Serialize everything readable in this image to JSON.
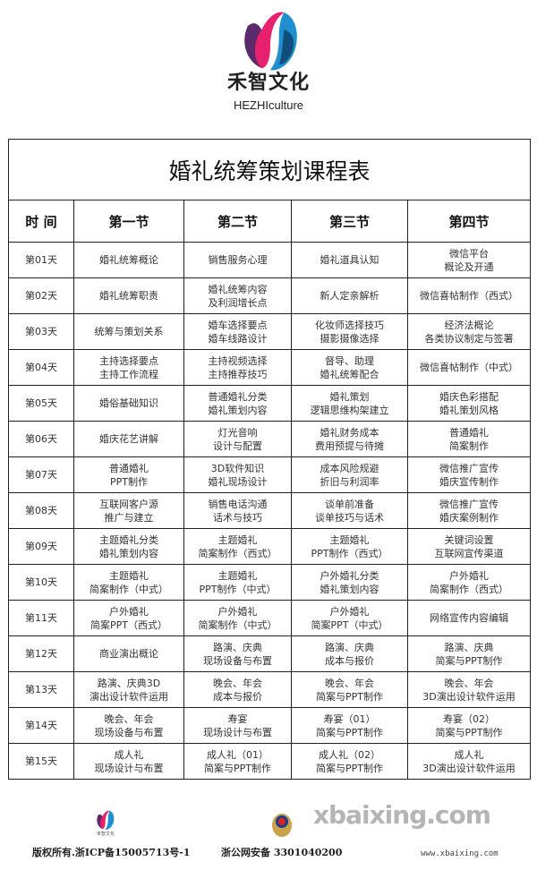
{
  "brand": {
    "name_cn": "禾智文化",
    "name_en": "HEZHIculture",
    "colors": {
      "pink": "#e8216f",
      "blue": "#1f8fd0",
      "purple": "#5a2a6a"
    }
  },
  "table": {
    "title": "婚礼统筹策划课程表",
    "headers": [
      "时 间",
      "第一节",
      "第二节",
      "第三节",
      "第四节"
    ],
    "rows": [
      [
        "第01天",
        "婚礼统筹概论",
        "销售服务心理",
        "婚礼道具认知",
        "微信平台\n概论及开通"
      ],
      [
        "第02天",
        "婚礼统筹职责",
        "婚礼统筹内容\n及利润增长点",
        "新人定亲解析",
        "微信喜帖制作（西式）"
      ],
      [
        "第03天",
        "统筹与策划关系",
        "婚车选择要点\n婚车线路设计",
        "化妆师选择技巧\n摄影摄像选择",
        "经济法概论\n各类协议制定与签署"
      ],
      [
        "第04天",
        "主持选择要点\n主持工作流程",
        "主持视频选择\n主持推荐技巧",
        "督导、助理\n婚礼统筹配合",
        "微信喜帖制作（中式）"
      ],
      [
        "第05天",
        "婚俗基础知识",
        "普通婚礼分类\n婚礼策划内容",
        "婚礼策划\n逻辑思维构架建立",
        "婚庆色彩搭配\n婚礼策划风格"
      ],
      [
        "第06天",
        "婚庆花艺讲解",
        "灯光音响\n设计与配置",
        "婚礼财务成本\n费用预提与待摊",
        "普通婚礼\n简案制作"
      ],
      [
        "第07天",
        "普通婚礼\nPPT制作",
        "3D软件知识\n婚礼现场设计",
        "成本风险规避\n折旧与利润率",
        "微信推广宣传\n婚庆宣传制作"
      ],
      [
        "第08天",
        "互联网客户源\n推广与建立",
        "销售电话沟通\n话术与技巧",
        "谈单前准备\n谈单技巧与话术",
        "微信推广宣传\n婚庆案例制作"
      ],
      [
        "第09天",
        "主题婚礼分类\n婚礼策划内容",
        "主题婚礼\n简案制作（西式）",
        "主题婚礼\nPPT制作（西式）",
        "关键词设置\n互联网宣传渠道"
      ],
      [
        "第10天",
        "主题婚礼\n简案制作（中式）",
        "主题婚礼\nPPT制作（中式）",
        "户外婚礼分类\n婚礼策划内容",
        "户外婚礼\n简案制作（西式）"
      ],
      [
        "第11天",
        "户外婚礼\n简案PPT（西式）",
        "户外婚礼\n简案制作（中式）",
        "户外婚礼\n简案PPT（中式）",
        "网络宣传内容编辑"
      ],
      [
        "第12天",
        "商业演出概论",
        "路演、庆典\n现场设备与布置",
        "路演、庆典\n成本与报价",
        "路演、庆典\n简案与PPT制作"
      ],
      [
        "第13天",
        "路演、庆典3D\n演出设计软件运用",
        "晚会、年会\n成本与报价",
        "晚会、年会\n简案与PPT制作",
        "晚会、年会\n3D演出设计软件运用"
      ],
      [
        "第14天",
        "晚会、年会\n现场设备与布置",
        "寿宴\n现场设计与布置",
        "寿宴（01）\n简案与PPT制作",
        "寿宴（02）\n简案与PPT制作"
      ],
      [
        "第15天",
        "成人礼\n现场设计与布置",
        "成人礼（01）\n简案与PPT制作",
        "成人礼（02）\n简案与PPT制作",
        "成人礼\n3D演出设计软件运用"
      ]
    ]
  },
  "footer": {
    "logo_text": "禾智文化",
    "copyright": "版权所有.浙ICP备15005713号-1",
    "police": "浙公网安备 3301040200",
    "watermark": "xbaixing.com",
    "watermark_url": "www.xbaixing.com"
  }
}
